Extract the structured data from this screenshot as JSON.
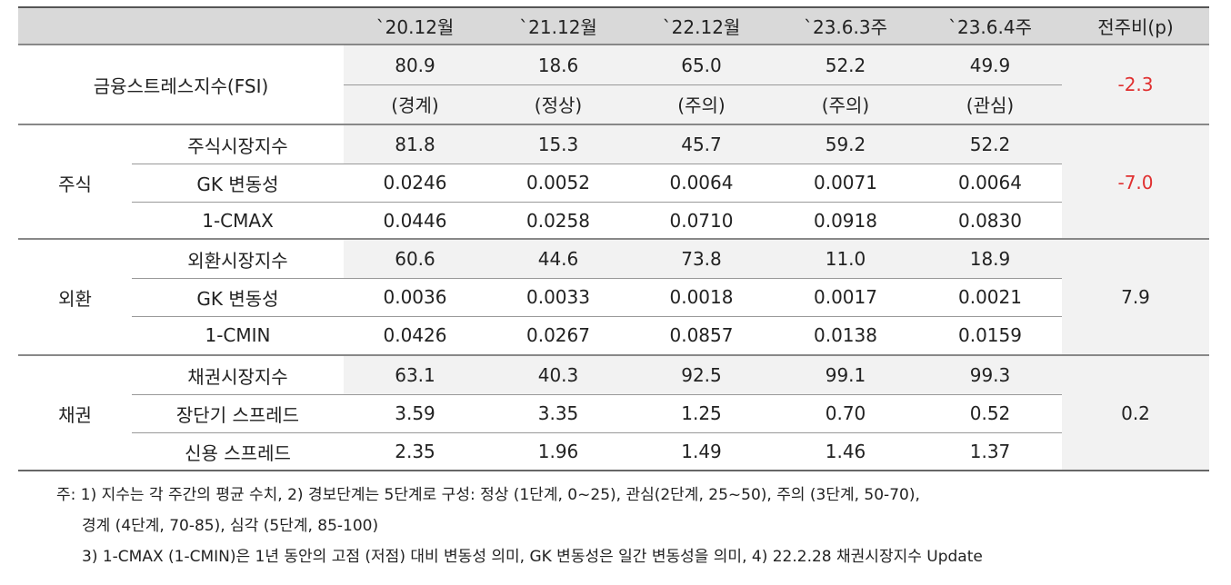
{
  "table": {
    "columns": [
      "`20.12월",
      "`21.12월",
      "`22.12월",
      "`23.6.3주",
      "`23.6.4주",
      "전주비(p)"
    ],
    "fsi": {
      "label": "금융스트레스지수(FSI)",
      "values": [
        "80.9",
        "18.6",
        "65.0",
        "52.2",
        "49.9"
      ],
      "levels": [
        "(경계)",
        "(정상)",
        "(주의)",
        "(주의)",
        "(관심)"
      ],
      "change": "-2.3"
    },
    "groups": [
      {
        "label": "주식",
        "change": "-7.0",
        "rows": [
          {
            "label": "주식시장지수",
            "values": [
              "81.8",
              "15.3",
              "45.7",
              "59.2",
              "52.2"
            ]
          },
          {
            "label": "GK 변동성",
            "values": [
              "0.0246",
              "0.0052",
              "0.0064",
              "0.0071",
              "0.0064"
            ]
          },
          {
            "label": "1-CMAX",
            "values": [
              "0.0446",
              "0.0258",
              "0.0710",
              "0.0918",
              "0.0830"
            ]
          }
        ]
      },
      {
        "label": "외환",
        "change": "7.9",
        "rows": [
          {
            "label": "외환시장지수",
            "values": [
              "60.6",
              "44.6",
              "73.8",
              "11.0",
              "18.9"
            ]
          },
          {
            "label": "GK 변동성",
            "values": [
              "0.0036",
              "0.0033",
              "0.0018",
              "0.0017",
              "0.0021"
            ]
          },
          {
            "label": "1-CMIN",
            "values": [
              "0.0426",
              "0.0267",
              "0.0857",
              "0.0138",
              "0.0159"
            ]
          }
        ]
      },
      {
        "label": "채권",
        "change": "0.2",
        "rows": [
          {
            "label": "채권시장지수",
            "values": [
              "63.1",
              "40.3",
              "92.5",
              "99.1",
              "99.3"
            ]
          },
          {
            "label": "장단기 스프레드",
            "values": [
              "3.59",
              "3.35",
              "1.25",
              "0.70",
              "0.52"
            ]
          },
          {
            "label": "신용 스프레드",
            "values": [
              "2.35",
              "1.96",
              "1.49",
              "1.46",
              "1.37"
            ]
          }
        ]
      }
    ],
    "notes": [
      "주: 1) 지수는 각 주간의 평균 수치, 2) 경보단계는 5단계로 구성: 정상 (1단계, 0~25), 관심(2단계, 25~50), 주의 (3단계, 50-70),",
      "경계 (4단계, 70-85), 심각 (5단계, 85-100)",
      "3) 1-CMAX (1-CMIN)은 1년 동안의 고점 (저점) 대비 변동성 의미, GK 변동성은 일간 변동성을 의미, 4) 22.2.28 채권시장지수 Update"
    ]
  }
}
